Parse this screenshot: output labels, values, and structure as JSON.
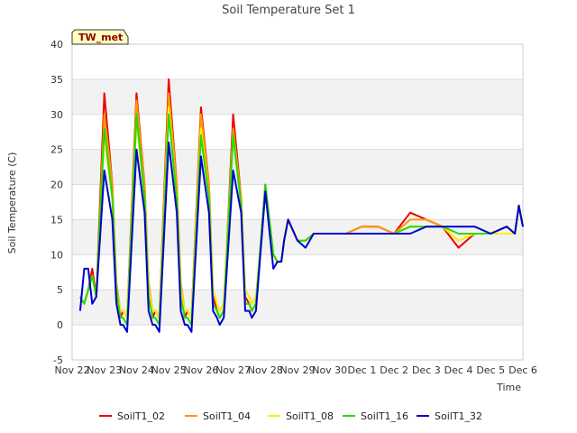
{
  "chart_data": {
    "type": "line",
    "title": "Soil Temperature Set 1",
    "xlabel": "Time",
    "ylabel": "Soil Temperature (C)",
    "badge": "TW_met",
    "ylim": [
      -5,
      40
    ],
    "yticks": [
      -5,
      0,
      5,
      10,
      15,
      20,
      25,
      30,
      35,
      40
    ],
    "xlim": [
      "2021-11-22",
      "2021-12-06"
    ],
    "xticks": [
      "Nov 22",
      "Nov 23",
      "Nov 24",
      "Nov 25",
      "Nov 26",
      "Nov 27",
      "Nov 28",
      "Nov 29",
      "Nov 30",
      "Dec 1",
      "Dec 2",
      "Dec 3",
      "Dec 4",
      "Dec 5",
      "Dec 6"
    ],
    "grid": true,
    "banded_background": true,
    "legend_position": "bottom",
    "x": [
      "Nov 22 06:00",
      "Nov 22 09:00",
      "Nov 22 12:00",
      "Nov 22 15:00",
      "Nov 22 18:00",
      "Nov 23 00:00",
      "Nov 23 06:00",
      "Nov 23 09:00",
      "Nov 23 12:00",
      "Nov 23 14:00",
      "Nov 23 17:00",
      "Nov 24 00:00",
      "Nov 24 06:00",
      "Nov 24 09:00",
      "Nov 24 12:00",
      "Nov 24 14:00",
      "Nov 24 17:00",
      "Nov 25 00:00",
      "Nov 25 06:00",
      "Nov 25 09:00",
      "Nov 25 12:00",
      "Nov 25 14:00",
      "Nov 25 17:00",
      "Nov 26 00:00",
      "Nov 26 06:00",
      "Nov 26 09:00",
      "Nov 26 12:00",
      "Nov 26 14:00",
      "Nov 26 17:00",
      "Nov 27 00:00",
      "Nov 27 06:00",
      "Nov 27 09:00",
      "Nov 27 12:00",
      "Nov 27 14:00",
      "Nov 27 17:00",
      "Nov 28 00:00",
      "Nov 28 06:00",
      "Nov 28 09:00",
      "Nov 28 12:00",
      "Nov 28 14:00",
      "Nov 28 17:00",
      "Nov 29 00:00",
      "Nov 29 06:00",
      "Nov 29 12:00",
      "Nov 29 18:00",
      "Nov 30 00:00",
      "Nov 30 12:00",
      "Dec 1 00:00",
      "Dec 1 12:00",
      "Dec 2 00:00",
      "Dec 2 12:00",
      "Dec 3 00:00",
      "Dec 3 12:00",
      "Dec 4 00:00",
      "Dec 4 12:00",
      "Dec 5 00:00",
      "Dec 5 12:00",
      "Dec 5 18:00",
      "Dec 5 21:00",
      "Dec 6 00:00"
    ],
    "series": [
      {
        "name": "SoilT1_02",
        "color": "#ee0000",
        "values": [
          4,
          3,
          5,
          8,
          4,
          33,
          20,
          5,
          1,
          2,
          1,
          33,
          20,
          5,
          1,
          2,
          1,
          35,
          20,
          5,
          1,
          2,
          1,
          31,
          20,
          4,
          2,
          1,
          2,
          30,
          18,
          4,
          3,
          2,
          3,
          20,
          10,
          9,
          9,
          12,
          15,
          12,
          12,
          13,
          13,
          13,
          13,
          14,
          14,
          13,
          16,
          15,
          14,
          11,
          13,
          13,
          14,
          13,
          17,
          14
        ]
      },
      {
        "name": "SoilT1_04",
        "color": "#ff9900",
        "values": [
          4,
          3,
          5,
          7,
          4,
          30,
          20,
          6,
          2,
          2,
          1,
          32,
          20,
          6,
          2,
          2,
          1,
          33,
          20,
          6,
          2,
          2,
          1,
          30,
          20,
          5,
          3,
          2,
          3,
          28,
          18,
          5,
          4,
          3,
          4,
          19,
          10,
          9,
          9,
          12,
          15,
          12,
          12,
          13,
          13,
          13,
          13,
          14,
          14,
          13,
          15,
          15,
          14,
          12,
          13,
          13,
          14,
          13,
          17,
          14
        ]
      },
      {
        "name": "SoilT1_08",
        "color": "#ffee00",
        "values": [
          4,
          3,
          5,
          7,
          4,
          27,
          18,
          5,
          2,
          2,
          1,
          29,
          18,
          5,
          2,
          2,
          1,
          31,
          18,
          5,
          2,
          2,
          1,
          28,
          18,
          5,
          3,
          2,
          3,
          27,
          17,
          5,
          4,
          3,
          4,
          19,
          10,
          9,
          9,
          12,
          15,
          12,
          12,
          13,
          13,
          13,
          13,
          13,
          13,
          13,
          14,
          14,
          14,
          12,
          13,
          13,
          13,
          13,
          17,
          14
        ]
      },
      {
        "name": "SoilT1_16",
        "color": "#22dd00",
        "values": [
          4,
          3,
          5,
          7,
          4,
          28,
          18,
          5,
          1,
          1,
          0,
          30,
          18,
          4,
          1,
          1,
          0,
          30,
          18,
          4,
          1,
          1,
          0,
          27,
          18,
          3,
          2,
          1,
          2,
          27,
          17,
          3,
          3,
          2,
          3,
          20,
          10,
          9,
          9,
          12,
          15,
          12,
          12,
          13,
          13,
          13,
          13,
          13,
          13,
          13,
          14,
          14,
          14,
          13,
          13,
          13,
          14,
          13,
          17,
          14
        ]
      },
      {
        "name": "SoilT1_32",
        "color": "#0000cc",
        "values": [
          2,
          8,
          8,
          3,
          4,
          22,
          15,
          3,
          0,
          0,
          -1,
          25,
          16,
          2,
          0,
          0,
          -1,
          26,
          16,
          2,
          0,
          0,
          -1,
          24,
          16,
          2,
          1,
          0,
          1,
          22,
          16,
          2,
          2,
          1,
          2,
          19,
          8,
          9,
          9,
          12,
          15,
          12,
          11,
          13,
          13,
          13,
          13,
          13,
          13,
          13,
          13,
          14,
          14,
          14,
          14,
          13,
          14,
          13,
          17,
          14
        ]
      }
    ]
  }
}
